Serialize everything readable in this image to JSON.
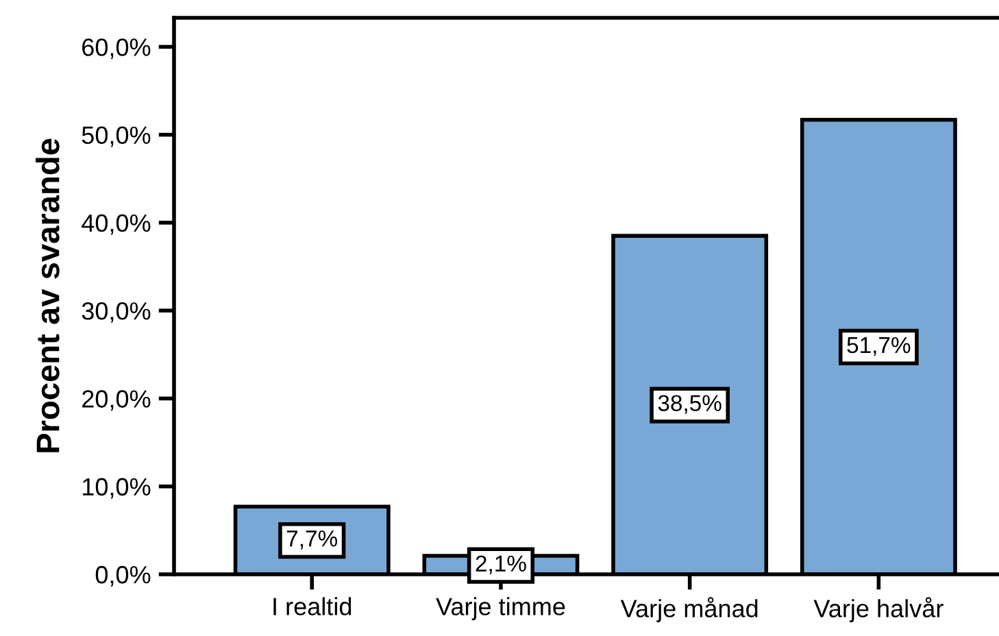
{
  "chart_data": {
    "type": "bar",
    "ylabel": "Procent av svarande",
    "categories": [
      "I realtid",
      "Varje timme",
      "Varje månad",
      "Varje halvår"
    ],
    "values": [
      7.7,
      2.1,
      38.5,
      51.7
    ],
    "value_labels": [
      "7,7%",
      "2,1%",
      "38,5%",
      "51,7%"
    ],
    "color": "#7aa8d6",
    "ylim": [
      0,
      63.3
    ],
    "yticks": [
      {
        "value": 0,
        "label": "0,0%"
      },
      {
        "value": 10,
        "label": "10,0%"
      },
      {
        "value": 20,
        "label": "20,0%"
      },
      {
        "value": 30,
        "label": "30,0%"
      },
      {
        "value": 40,
        "label": "40,0%"
      },
      {
        "value": 50,
        "label": "50,0%"
      },
      {
        "value": 60,
        "label": "60,0%"
      }
    ],
    "grid": false,
    "legend": false
  }
}
